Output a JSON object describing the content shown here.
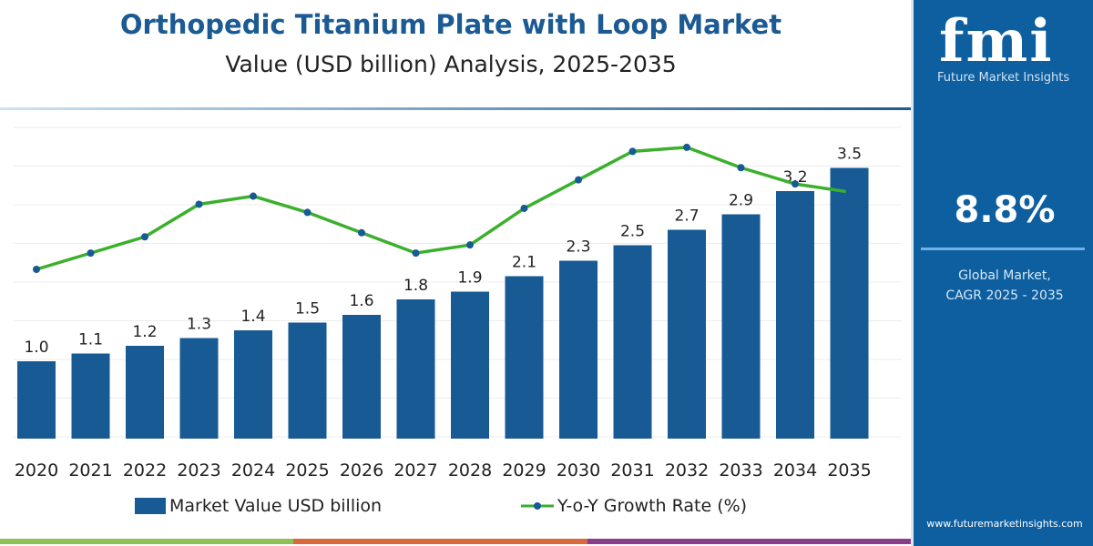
{
  "header": {
    "title": "Orthopedic Titanium Plate with Loop Market",
    "subtitle": "Value (USD billion) Analysis, 2025-2035"
  },
  "sidebar": {
    "logo_text": "fmi",
    "logo_caption": "Future Market Insights",
    "cagr_value": "8.8%",
    "cagr_label_1": "Global Market,",
    "cagr_label_2": "CAGR 2025 - 2035",
    "url": "www.futuremarketinsights.com"
  },
  "colors": {
    "bar": "#175a94",
    "line": "#3bb02c",
    "marker": "#175a94",
    "brand": "#0e5fa0",
    "stripes": [
      "#8dc055",
      "#d9683a",
      "#8a3d8c"
    ]
  },
  "chart_data": {
    "type": "bar+line",
    "categories": [
      "2020",
      "2021",
      "2022",
      "2023",
      "2024",
      "2025",
      "2026",
      "2027",
      "2028",
      "2029",
      "2030",
      "2031",
      "2032",
      "2033",
      "2034",
      "2035"
    ],
    "series": [
      {
        "name": "Market Value USD billion",
        "type": "bar",
        "values": [
          1.0,
          1.1,
          1.2,
          1.3,
          1.4,
          1.5,
          1.6,
          1.8,
          1.9,
          2.1,
          2.3,
          2.5,
          2.7,
          2.9,
          3.2,
          3.5
        ],
        "labels": [
          "1.0",
          "1.1",
          "1.2",
          "1.3",
          "1.4",
          "1.5",
          "1.6",
          "1.8",
          "1.9",
          "2.1",
          "2.3",
          "2.5",
          "2.7",
          "2.9",
          "3.2",
          "3.5"
        ]
      },
      {
        "name": "Y-o-Y Growth Rate (%)",
        "type": "line",
        "values": [
          8.1,
          8.5,
          8.9,
          9.7,
          9.9,
          9.5,
          9.0,
          8.5,
          8.7,
          9.6,
          10.3,
          11.0,
          11.1,
          10.6,
          10.2,
          10.0
        ]
      }
    ],
    "ylim": [
      0,
      4
    ],
    "grid": true,
    "legend": "bottom"
  }
}
